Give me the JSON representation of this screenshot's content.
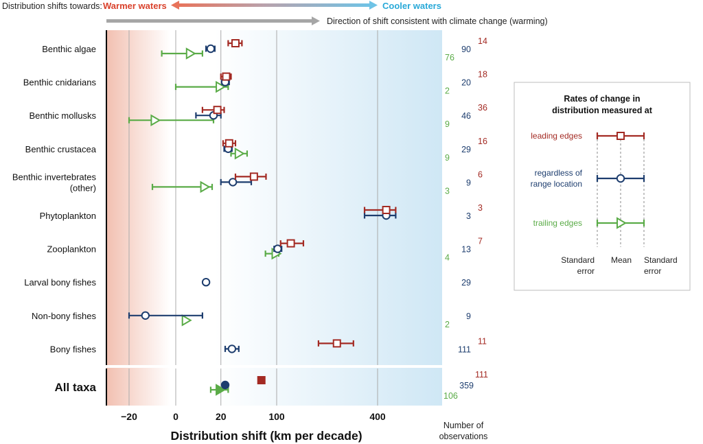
{
  "header": {
    "shift_prefix": "Distribution shifts towards:",
    "warmer": "Warmer waters",
    "cooler": "Cooler waters",
    "direction": "Direction of shift consistent with climate change (warming)"
  },
  "colors": {
    "leading": "#a32a23",
    "overall": "#1d3d6e",
    "trailing": "#5aab47",
    "warm": "#e8735a",
    "cool": "#6fc3e6"
  },
  "chart_data": {
    "type": "scatter",
    "xlabel": "Distribution shift (km per decade)",
    "count_label": [
      "Number of",
      "observations"
    ],
    "x_ticks": [
      {
        "label": "−20",
        "value": -20
      },
      {
        "label": "0",
        "value": 0
      },
      {
        "label": "20",
        "value": 20
      },
      {
        "label": "100",
        "value": 100
      },
      {
        "label": "400",
        "value": 400
      }
    ],
    "categories": [
      {
        "label": [
          "Benthic algae"
        ],
        "leading": {
          "mean": 35,
          "lo": 27,
          "hi": 43,
          "n": "14"
        },
        "overall": {
          "mean": 12,
          "lo": 9,
          "hi": 15,
          "n": "90"
        },
        "trailing": {
          "mean": 2,
          "lo": -6,
          "hi": 7,
          "n": "76"
        }
      },
      {
        "label": [
          "Benthic cnidarians"
        ],
        "leading": {
          "mean": 25,
          "lo": 20,
          "hi": 30,
          "n": "18"
        },
        "overall": {
          "mean": 24,
          "lo": 21,
          "hi": 28,
          "n": "20"
        },
        "trailing": {
          "mean": 19,
          "lo": 0,
          "hi": 27,
          "n": "2"
        }
      },
      {
        "label": [
          "Benthic mollusks"
        ],
        "leading": {
          "mean": 17,
          "lo": 7,
          "hi": 23,
          "n": "36"
        },
        "overall": {
          "mean": 14,
          "lo": 4,
          "hi": 20,
          "n": "46"
        },
        "trailing": {
          "mean": -9,
          "lo": -20,
          "hi": 14,
          "n": "9"
        }
      },
      {
        "label": [
          "Benthic crustacea"
        ],
        "leading": {
          "mean": 28,
          "lo": 22,
          "hi": 35,
          "n": "16"
        },
        "overall": {
          "mean": 27,
          "lo": 23,
          "hi": 31,
          "n": "29"
        },
        "trailing": {
          "mean": 39,
          "lo": 30,
          "hi": 50,
          "n": "9"
        }
      },
      {
        "label": [
          "Benthic invertebrates",
          "(other)"
        ],
        "leading": {
          "mean": 60,
          "lo": 35,
          "hi": 80,
          "n": "6"
        },
        "overall": {
          "mean": 32,
          "lo": 20,
          "hi": 56,
          "n": "9"
        },
        "trailing": {
          "mean": 8,
          "lo": -10,
          "hi": 13,
          "n": "3"
        }
      },
      {
        "label": [
          "Phytoplankton"
        ],
        "leading": {
          "mean": 435,
          "lo": 350,
          "hi": 475,
          "n": "3"
        },
        "overall": {
          "mean": 435,
          "lo": 350,
          "hi": 475,
          "n": "3"
        },
        "trailing": null
      },
      {
        "label": [
          "Zooplankton"
        ],
        "leading": {
          "mean": 130,
          "lo": 108,
          "hi": 160,
          "n": "7"
        },
        "overall": {
          "mean": 102,
          "lo": 95,
          "hi": 110,
          "n": "13"
        },
        "trailing": {
          "mean": 98,
          "lo": 79,
          "hi": 104,
          "n": "4"
        }
      },
      {
        "label": [
          "Larval bony fishes"
        ],
        "leading": null,
        "overall": {
          "mean": 9,
          "n": "29"
        },
        "trailing": null
      },
      {
        "label": [
          "Non-bony fishes"
        ],
        "leading": null,
        "overall": {
          "mean": -13,
          "lo": -20,
          "hi": 7,
          "n": "9"
        },
        "trailing": {
          "mean": 1,
          "n": "2"
        }
      },
      {
        "label": [
          "Bony fishes"
        ],
        "leading": {
          "mean": 255,
          "lo": 200,
          "hi": 310,
          "n": "11"
        },
        "overall": {
          "mean": 31,
          "lo": 24,
          "hi": 39,
          "n": "111"
        },
        "trailing": null
      }
    ],
    "all_taxa": {
      "label": "All taxa",
      "leading": {
        "mean": 72,
        "n": "111"
      },
      "overall": {
        "mean": 24,
        "n": "359"
      },
      "trailing": {
        "mean": 19,
        "lo": 12,
        "hi": 27,
        "n": "106"
      }
    }
  },
  "legend": {
    "title": [
      "Rates of change in",
      "distribution measured at"
    ],
    "leading": "leading edges",
    "overall": [
      "regardless of",
      "range location"
    ],
    "trailing": "trailing edges",
    "se_left": [
      "Standard",
      "error"
    ],
    "mean": "Mean",
    "se_right": [
      "Standard",
      "error"
    ]
  }
}
